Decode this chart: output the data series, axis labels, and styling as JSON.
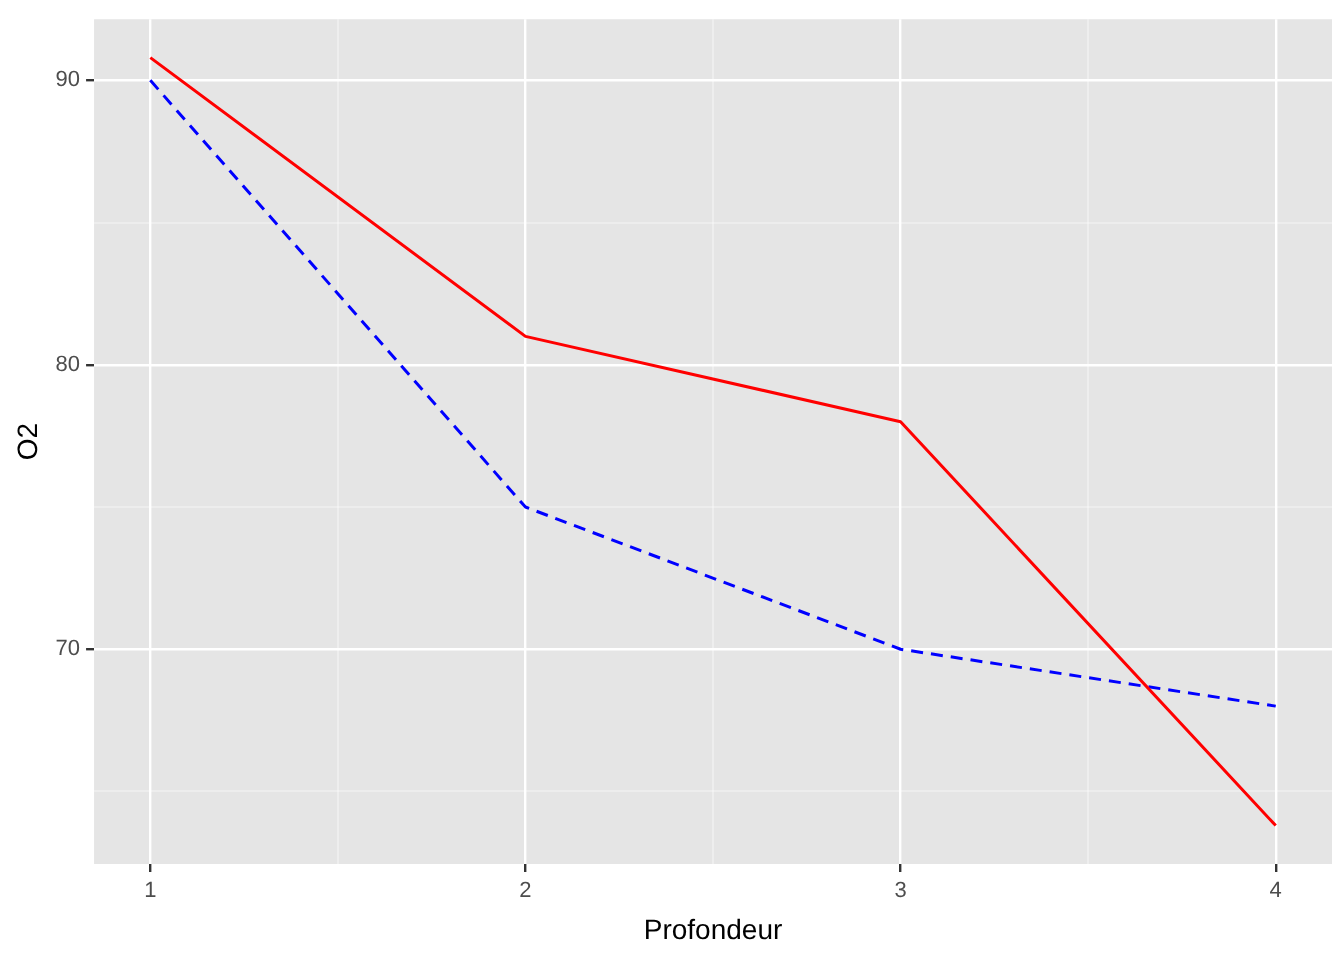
{
  "chart_data": {
    "type": "line",
    "xlabel": "Profondeur",
    "ylabel": "O2",
    "x": [
      1,
      2,
      3,
      4
    ],
    "series": [
      {
        "color": "#ff0000",
        "line_style": "solid",
        "values": [
          90.8,
          81,
          78,
          63.8
        ]
      },
      {
        "color": "#0000ff",
        "line_style": "dashed",
        "values": [
          90,
          75,
          70,
          68
        ]
      }
    ],
    "xlim": [
      0.85,
      4.15
    ],
    "xticks": [
      1,
      {
        "value": 1.5,
        "label": null
      },
      2,
      {
        "value": 2.5,
        "label": null
      },
      3,
      {
        "value": 3.5,
        "label": null
      },
      4
    ],
    "ylim": [
      62.45,
      92.15
    ],
    "yticks": [
      {
        "value": 65,
        "label": null
      },
      70,
      {
        "value": 75,
        "label": null
      },
      80,
      {
        "value": 85,
        "label": null
      },
      90
    ],
    "grid": true,
    "marker": "none",
    "legend": false
  }
}
